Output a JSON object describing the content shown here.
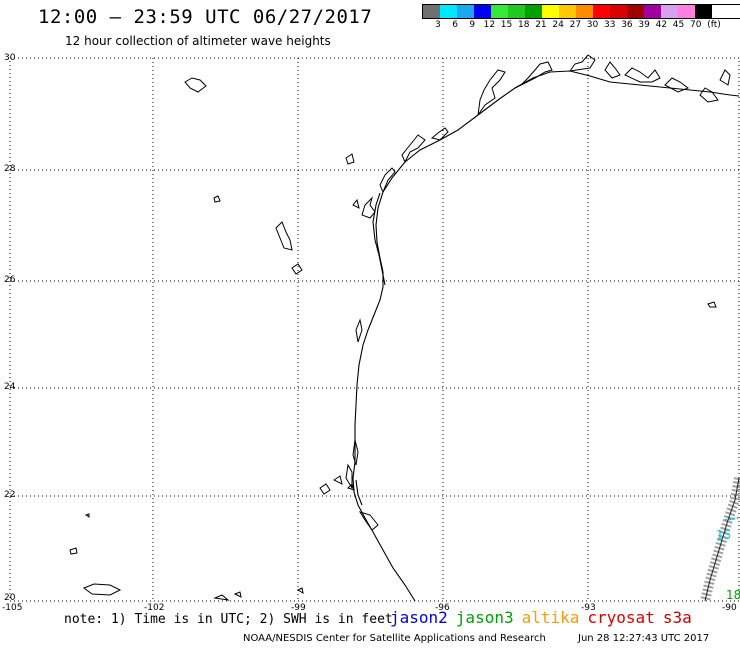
{
  "header": {
    "title": "12:00 – 23:59 UTC 06/27/2017",
    "subtitle": "12 hour collection of altimeter wave heights"
  },
  "color_scale": {
    "colors": [
      "#707070",
      "#00e8ff",
      "#1ca8f0",
      "#0000f0",
      "#38e838",
      "#20c820",
      "#00a000",
      "#ffff00",
      "#ffc800",
      "#ff8c00",
      "#ff0000",
      "#d80000",
      "#a00000",
      "#a000a0",
      "#d8a0f0",
      "#ff80e0",
      "#000000"
    ],
    "labels": [
      "3",
      "6",
      "9",
      "12",
      "15",
      "18",
      "21",
      "24",
      "27",
      "30",
      "33",
      "36",
      "39",
      "42",
      "45",
      "70"
    ],
    "unit": "(ft)"
  },
  "axes": {
    "y_ticks": [
      "30",
      "28",
      "26",
      "24",
      "22",
      "20"
    ],
    "x_ticks": [
      "-105",
      "-102",
      "-99",
      "-96",
      "-93",
      "-90"
    ]
  },
  "footer": {
    "note": "note: 1) Time is in UTC; 2) SWH is in feet",
    "satellites": [
      {
        "name": "jason2",
        "color": "#0000e0"
      },
      {
        "name": "jason3",
        "color": "#00a000"
      },
      {
        "name": "altika",
        "color": "#ff9900"
      },
      {
        "name": "cryosat",
        "color": "#e00000"
      },
      {
        "name": "s3a",
        "color": "#cc0000"
      }
    ],
    "credit": "NOAA/NESDIS Center for Satellite Applications and Research",
    "timestamp": "Jun 28 12:27:43 UTC 2017"
  },
  "track_labels": {
    "green_label": "18",
    "cyan_label": "15"
  }
}
